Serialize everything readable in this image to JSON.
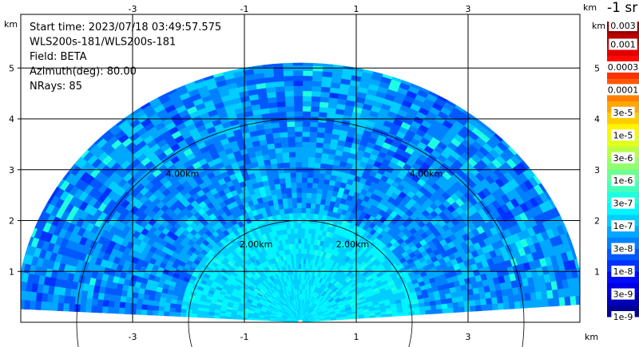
{
  "chart_data": {
    "type": "heatmap",
    "subtype": "polar RHI scan",
    "info_lines": [
      "Start time: 2023/07/18 03:49:57.575",
      "WLS200s-181/WLS200s-181",
      "Field: BETA",
      "Azimuth(deg): 80.00",
      "NRays: 85"
    ],
    "x_unit": "km",
    "y_unit": "km",
    "x_ticks": [
      "-3",
      "-1",
      "1",
      "3"
    ],
    "y_ticks": [
      "5",
      "4",
      "3",
      "2",
      "1"
    ],
    "xlim": [
      -5,
      5
    ],
    "ylim": [
      0,
      6.05
    ],
    "grid": true,
    "range_rings": [
      {
        "range_km": 2,
        "label": "2.00km"
      },
      {
        "range_km": 4,
        "label": "4.00km"
      }
    ],
    "max_range_km": 5.1,
    "elevation_range_deg": [
      5,
      176
    ],
    "colorbar": {
      "title": "-1 sr",
      "scale": "log",
      "ticks": [
        "0.003",
        "0.001",
        "0.0003",
        "0.0001",
        "3e-5",
        "1e-5",
        "3e-6",
        "1e-6",
        "3e-7",
        "1e-7",
        "3e-8",
        "1e-8",
        "3e-9",
        "1e-9"
      ],
      "range": [
        1e-09,
        0.003
      ],
      "colormap": "jet",
      "colors": {
        "low": "#00007f",
        "high": "#7f0000"
      }
    },
    "field_summary": {
      "near_range_beta_typical": 2e-07,
      "far_range_beta_typical": 5e-08
    }
  }
}
